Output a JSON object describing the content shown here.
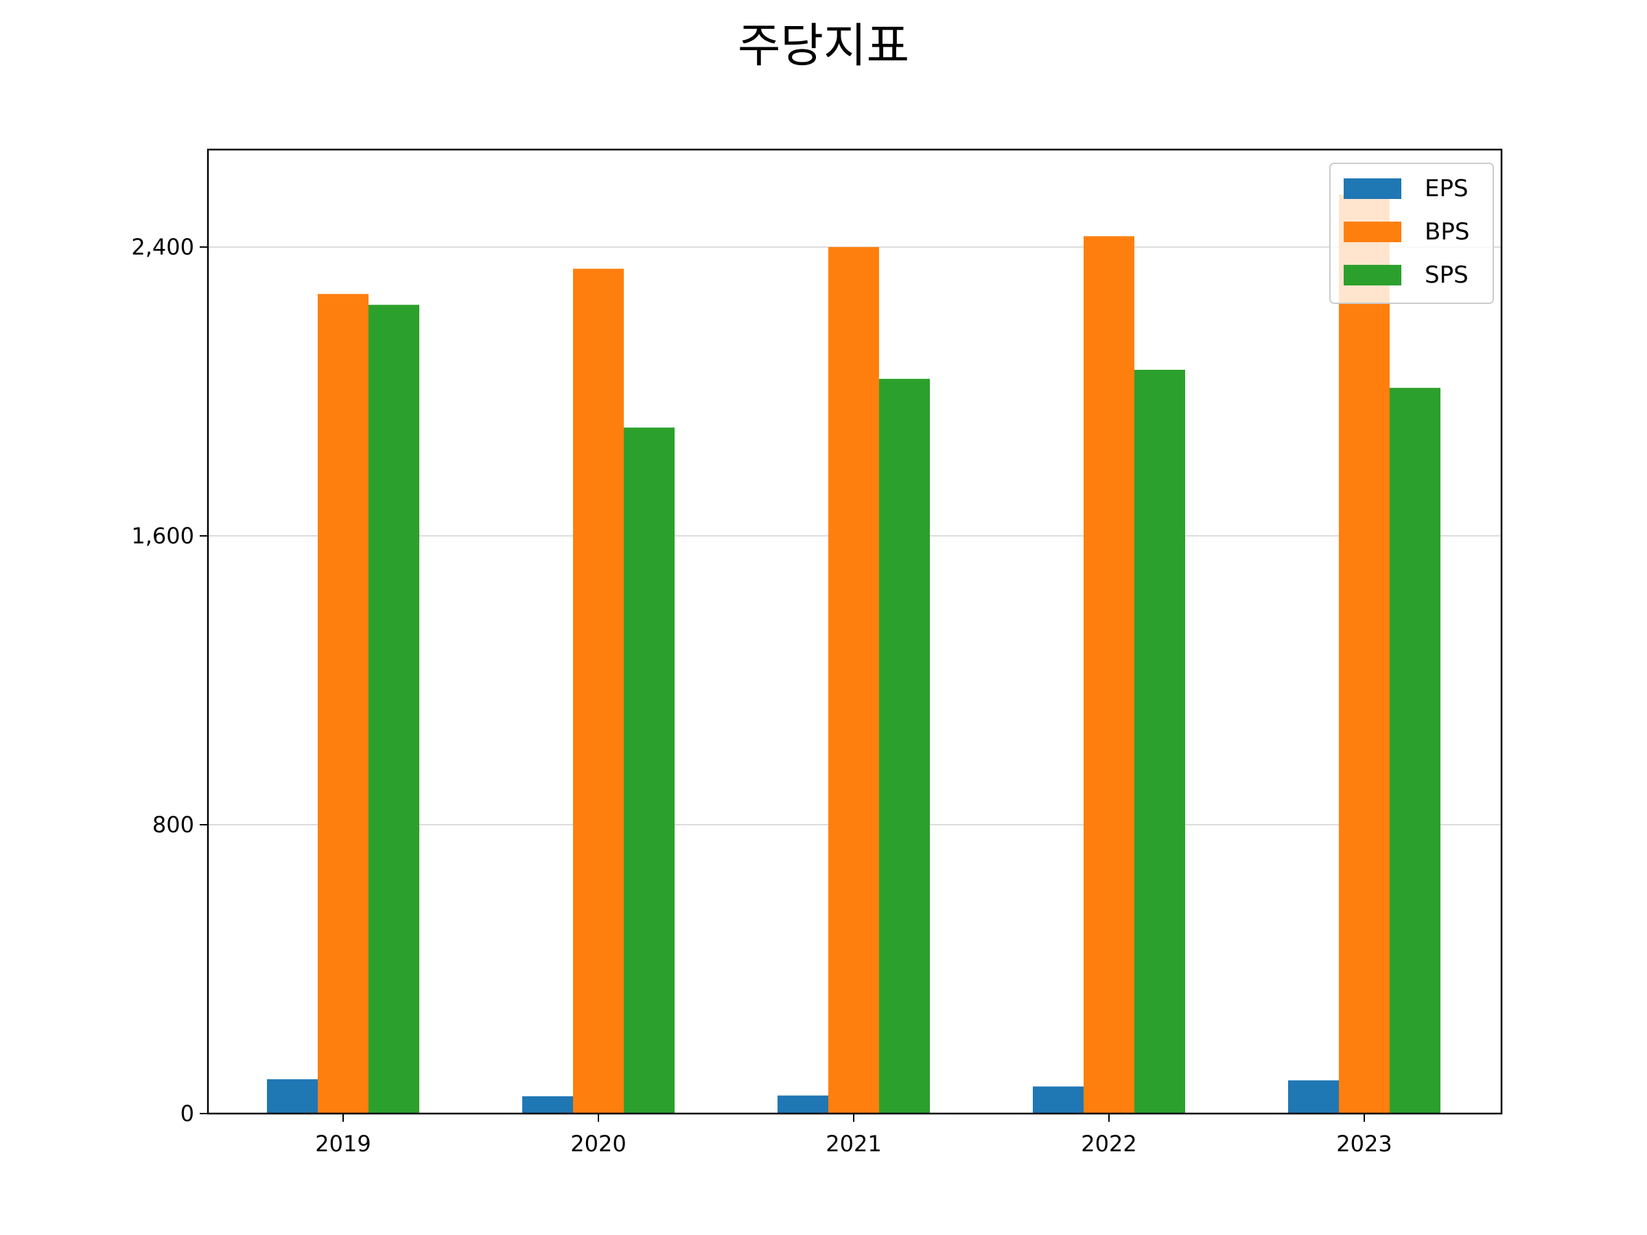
{
  "chart_data": {
    "type": "bar",
    "title": "주당지표",
    "xlabel": "",
    "ylabel": "",
    "categories": [
      "2019",
      "2020",
      "2021",
      "2022",
      "2023"
    ],
    "series": [
      {
        "name": "EPS",
        "color": "#1f77b4",
        "values": [
          95,
          48,
          50,
          75,
          92
        ]
      },
      {
        "name": "BPS",
        "color": "#ff7f0e",
        "values": [
          2270,
          2340,
          2400,
          2430,
          2545
        ]
      },
      {
        "name": "SPS",
        "color": "#2ca02c",
        "values": [
          2240,
          1900,
          2035,
          2060,
          2010
        ]
      }
    ],
    "ylim": [
      0,
      2670
    ],
    "yticks": [
      0,
      800,
      1600,
      2400
    ],
    "ytick_labels": [
      "0",
      "800",
      "1,600",
      "2,400"
    ],
    "grid": "y",
    "legend_position": "top-right"
  }
}
